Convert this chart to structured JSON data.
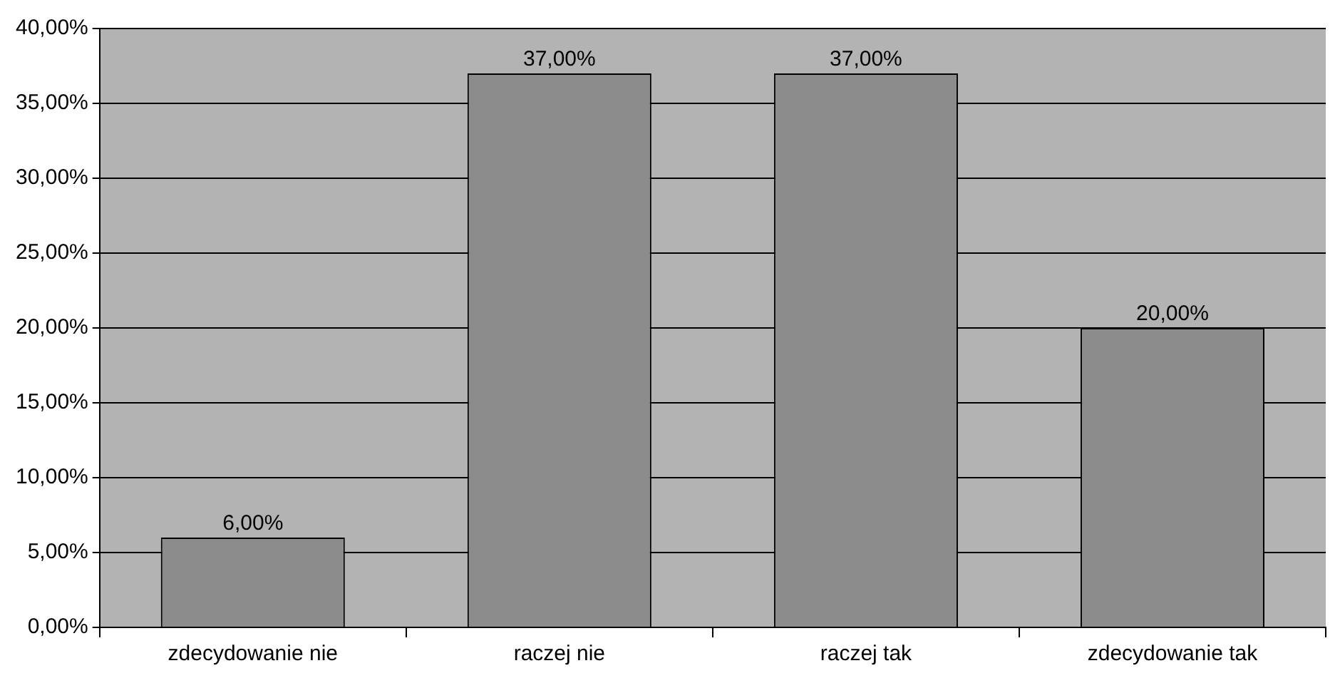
{
  "chart_data": {
    "type": "bar",
    "categories": [
      "zdecydowanie nie",
      "raczej nie",
      "raczej tak",
      "zdecydowanie tak"
    ],
    "values": [
      6,
      37,
      37,
      20
    ],
    "color": "#8c8c8c",
    "value_labels": [
      "6,00%",
      "37,00%",
      "37,00%",
      "20,00%"
    ],
    "ylim": [
      0,
      40
    ],
    "yticks": [
      {
        "value": 0,
        "label": "0,00%"
      },
      {
        "value": 5,
        "label": "5,00%"
      },
      {
        "value": 10,
        "label": "10,00%"
      },
      {
        "value": 15,
        "label": "15,00%"
      },
      {
        "value": 20,
        "label": "20,00%"
      },
      {
        "value": 25,
        "label": "25,00%"
      },
      {
        "value": 30,
        "label": "30,00%"
      },
      {
        "value": 35,
        "label": "35,00%"
      },
      {
        "value": 40,
        "label": "40,00%"
      }
    ],
    "grid": "y",
    "legend": false
  }
}
